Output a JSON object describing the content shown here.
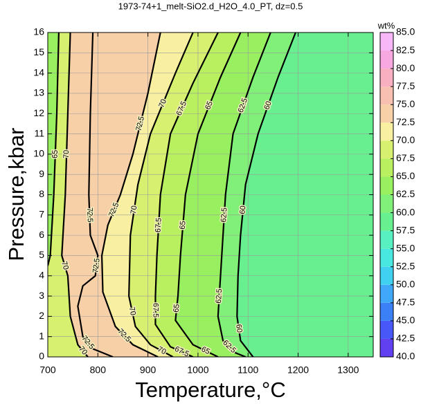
{
  "chart_data": {
    "type": "contour",
    "title": "1973-74+1_melt-SiO2.d_H2O_4.0_PT, dz=0.5",
    "x_label": "Temperature,°C",
    "y_label": "Pressure,kbar",
    "xlim": [
      700,
      1350
    ],
    "xticks": [
      700,
      800,
      900,
      1000,
      1100,
      1200,
      1300
    ],
    "ylim": [
      0,
      16
    ],
    "yticks": [
      0,
      1,
      2,
      3,
      4,
      5,
      6,
      7,
      8,
      9,
      10,
      11,
      12,
      13,
      14,
      15,
      16
    ],
    "grid": true,
    "contours": [
      {
        "level": 60,
        "points": [
          [
            1195,
            16
          ],
          [
            1160,
            13.8
          ],
          [
            1120,
            11
          ],
          [
            1095,
            8.5
          ],
          [
            1085,
            6
          ],
          [
            1080,
            4
          ],
          [
            1078,
            2
          ],
          [
            1085,
            0.8
          ],
          [
            1110,
            0
          ]
        ]
      },
      {
        "level": 62.5,
        "points": [
          [
            1145,
            16
          ],
          [
            1110,
            13.8
          ],
          [
            1070,
            11
          ],
          [
            1055,
            8
          ],
          [
            1050,
            6
          ],
          [
            1045,
            4
          ],
          [
            1040,
            2
          ],
          [
            1050,
            0.8
          ],
          [
            1075,
            0.2
          ],
          [
            1095,
            0
          ]
        ]
      },
      {
        "level": 65,
        "points": [
          [
            1085,
            16
          ],
          [
            1045,
            13.8
          ],
          [
            1000,
            11
          ],
          [
            975,
            8
          ],
          [
            965,
            5
          ],
          [
            960,
            3
          ],
          [
            955,
            1.8
          ],
          [
            990,
            0.6
          ],
          [
            1040,
            0
          ]
        ]
      },
      {
        "level": 67.5,
        "points": [
          [
            1040,
            16
          ],
          [
            990,
            13.5
          ],
          [
            945,
            11
          ],
          [
            925,
            8
          ],
          [
            918,
            5
          ],
          [
            915,
            3
          ],
          [
            915,
            1.6
          ],
          [
            945,
            0.5
          ],
          [
            990,
            0
          ]
        ]
      },
      {
        "level": 70,
        "points": [
          [
            990,
            16
          ],
          [
            955,
            14
          ],
          [
            905,
            11
          ],
          [
            880,
            8.5
          ],
          [
            865,
            6
          ],
          [
            862,
            3
          ],
          [
            875,
            1.5
          ],
          [
            905,
            0.6
          ],
          [
            950,
            0
          ]
        ]
      },
      {
        "level": 72.5,
        "points": [
          [
            925,
            16
          ],
          [
            900,
            13
          ],
          [
            870,
            10
          ],
          [
            845,
            8
          ],
          [
            820,
            6.5
          ],
          [
            808,
            5
          ],
          [
            810,
            3.2
          ],
          [
            835,
            1.5
          ],
          [
            870,
            0.6
          ],
          [
            920,
            0
          ]
        ]
      },
      {
        "level": 72.5,
        "points": [
          [
            790,
            16
          ],
          [
            785,
            12
          ],
          [
            782,
            8
          ],
          [
            785,
            6
          ],
          [
            800,
            5
          ],
          [
            795,
            4
          ],
          [
            770,
            3.5
          ],
          [
            760,
            2.5
          ],
          [
            770,
            1
          ],
          [
            790,
            0.4
          ],
          [
            830,
            0
          ]
        ]
      },
      {
        "level": 70,
        "points": [
          [
            745,
            16
          ],
          [
            740,
            12
          ],
          [
            735,
            8
          ],
          [
            728,
            5
          ],
          [
            740,
            4
          ],
          [
            745,
            2
          ],
          [
            760,
            0.6
          ],
          [
            780,
            0
          ]
        ]
      },
      {
        "level": 65,
        "points": [
          [
            722,
            16
          ],
          [
            718,
            12
          ],
          [
            712,
            8
          ],
          [
            705,
            5
          ],
          [
            700,
            4.5
          ]
        ]
      }
    ],
    "colorbar": {
      "label": "wt%",
      "ticks": [
        {
          "value": 40,
          "label": "40.0"
        },
        {
          "value": 42.5,
          "label": "42.5"
        },
        {
          "value": 45,
          "label": "45.0"
        },
        {
          "value": 47.5,
          "label": "47.5"
        },
        {
          "value": 50,
          "label": "50.0"
        },
        {
          "value": 52.5,
          "label": "52.5"
        },
        {
          "value": 55,
          "label": "55.0"
        },
        {
          "value": 57.5,
          "label": "57.5"
        },
        {
          "value": 60,
          "label": "60.0"
        },
        {
          "value": 62.5,
          "label": "62.5"
        },
        {
          "value": 65,
          "label": "65.0"
        },
        {
          "value": 67.5,
          "label": "67.5"
        },
        {
          "value": 70,
          "label": "70.0"
        },
        {
          "value": 72.5,
          "label": "72.5"
        },
        {
          "value": 75,
          "label": "75.0"
        },
        {
          "value": 77.5,
          "label": "77.5"
        },
        {
          "value": 80,
          "label": "80.0"
        },
        {
          "value": 82.5,
          "label": "82.5"
        },
        {
          "value": 85,
          "label": "85.0"
        }
      ],
      "colors": [
        "#6040f0",
        "#4858f8",
        "#3c80f8",
        "#40a8f8",
        "#40d0f0",
        "#48e8e0",
        "#58f0c0",
        "#68f090",
        "#80f078",
        "#98f060",
        "#b8f060",
        "#d8f070",
        "#f8f0a0",
        "#f8d0a8",
        "#f8c0b0",
        "#f8b0c0",
        "#f8a8e0",
        "#f8b8f8"
      ],
      "background_band": 7
    }
  }
}
